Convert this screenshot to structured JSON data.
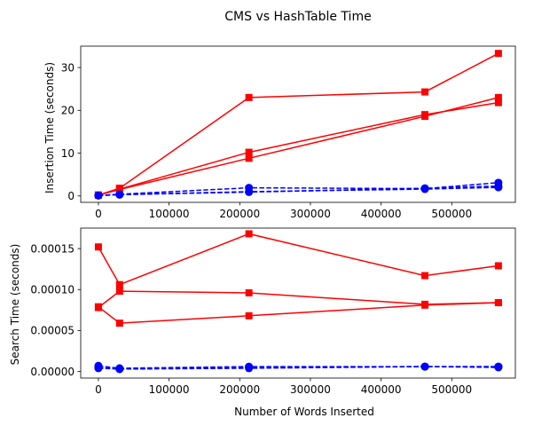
{
  "figure": {
    "title": "CMS vs HashTable Time"
  },
  "chart_data": [
    {
      "type": "line",
      "ylabel": "Insertion Time (seconds)",
      "xlabel": "",
      "xlim": [
        -25000,
        590000
      ],
      "ylim": [
        -1.5,
        35
      ],
      "xticks": [
        0,
        100000,
        200000,
        300000,
        400000,
        500000
      ],
      "xtick_labels": [
        "0",
        "100000",
        "200000",
        "300000",
        "400000",
        "500000"
      ],
      "yticks": [
        0,
        10,
        20,
        30
      ],
      "ytick_labels": [
        "0",
        "10",
        "20",
        "30"
      ],
      "x": [
        0,
        30000,
        213000,
        462000,
        566000
      ],
      "series": [
        {
          "color": "#ff0000",
          "style": "solid",
          "marker": "square",
          "values": [
            0.2,
            1.8,
            23.0,
            24.3,
            33.3
          ]
        },
        {
          "color": "#ff0000",
          "style": "solid",
          "marker": "square",
          "values": [
            0.2,
            1.6,
            10.2,
            19.0,
            21.8
          ]
        },
        {
          "color": "#ff0000",
          "style": "solid",
          "marker": "square",
          "values": [
            0.2,
            1.5,
            8.8,
            18.6,
            23.0
          ]
        },
        {
          "color": "#0000ff",
          "style": "dashed",
          "marker": "circle",
          "values": [
            0.1,
            0.4,
            1.9,
            1.7,
            3.1
          ]
        },
        {
          "color": "#0000ff",
          "style": "dashed",
          "marker": "circle",
          "values": [
            0.1,
            0.3,
            0.9,
            1.8,
            2.3
          ]
        },
        {
          "color": "#0000ff",
          "style": "dashed",
          "marker": "circle",
          "values": [
            0.1,
            0.3,
            1.0,
            1.6,
            2.0
          ]
        }
      ]
    },
    {
      "type": "line",
      "ylabel": "Search Time (seconds)",
      "xlabel": "Number of Words Inserted",
      "xlim": [
        -25000,
        590000
      ],
      "ylim": [
        -8e-06,
        0.000175
      ],
      "xticks": [
        0,
        100000,
        200000,
        300000,
        400000,
        500000
      ],
      "xtick_labels": [
        "0",
        "100000",
        "200000",
        "300000",
        "400000",
        "500000"
      ],
      "yticks": [
        0,
        5e-05,
        0.0001,
        0.00015
      ],
      "ytick_labels": [
        "0.00000",
        "0.00005",
        "0.00010",
        "0.00015"
      ],
      "x": [
        0,
        30000,
        213000,
        462000,
        566000
      ],
      "series": [
        {
          "color": "#ff0000",
          "style": "solid",
          "marker": "square",
          "values": [
            0.000152,
            0.000106,
            0.000168,
            0.000117,
            0.000129
          ]
        },
        {
          "color": "#ff0000",
          "style": "solid",
          "marker": "square",
          "values": [
            7.8e-05,
            9.8e-05,
            9.6e-05,
            8.2e-05,
            8.4e-05
          ]
        },
        {
          "color": "#ff0000",
          "style": "solid",
          "marker": "square",
          "values": [
            7.9e-05,
            5.9e-05,
            6.8e-05,
            8.1e-05,
            8.4e-05
          ]
        },
        {
          "color": "#0000ff",
          "style": "dashed",
          "marker": "circle",
          "values": [
            7e-06,
            4e-06,
            6e-06,
            6e-06,
            6e-06
          ]
        },
        {
          "color": "#0000ff",
          "style": "dashed",
          "marker": "circle",
          "values": [
            5e-06,
            3e-06,
            5e-06,
            6e-06,
            6e-06
          ]
        },
        {
          "color": "#0000ff",
          "style": "dashed",
          "marker": "circle",
          "values": [
            4e-06,
            3e-06,
            4e-06,
            6e-06,
            5e-06
          ]
        }
      ]
    }
  ]
}
